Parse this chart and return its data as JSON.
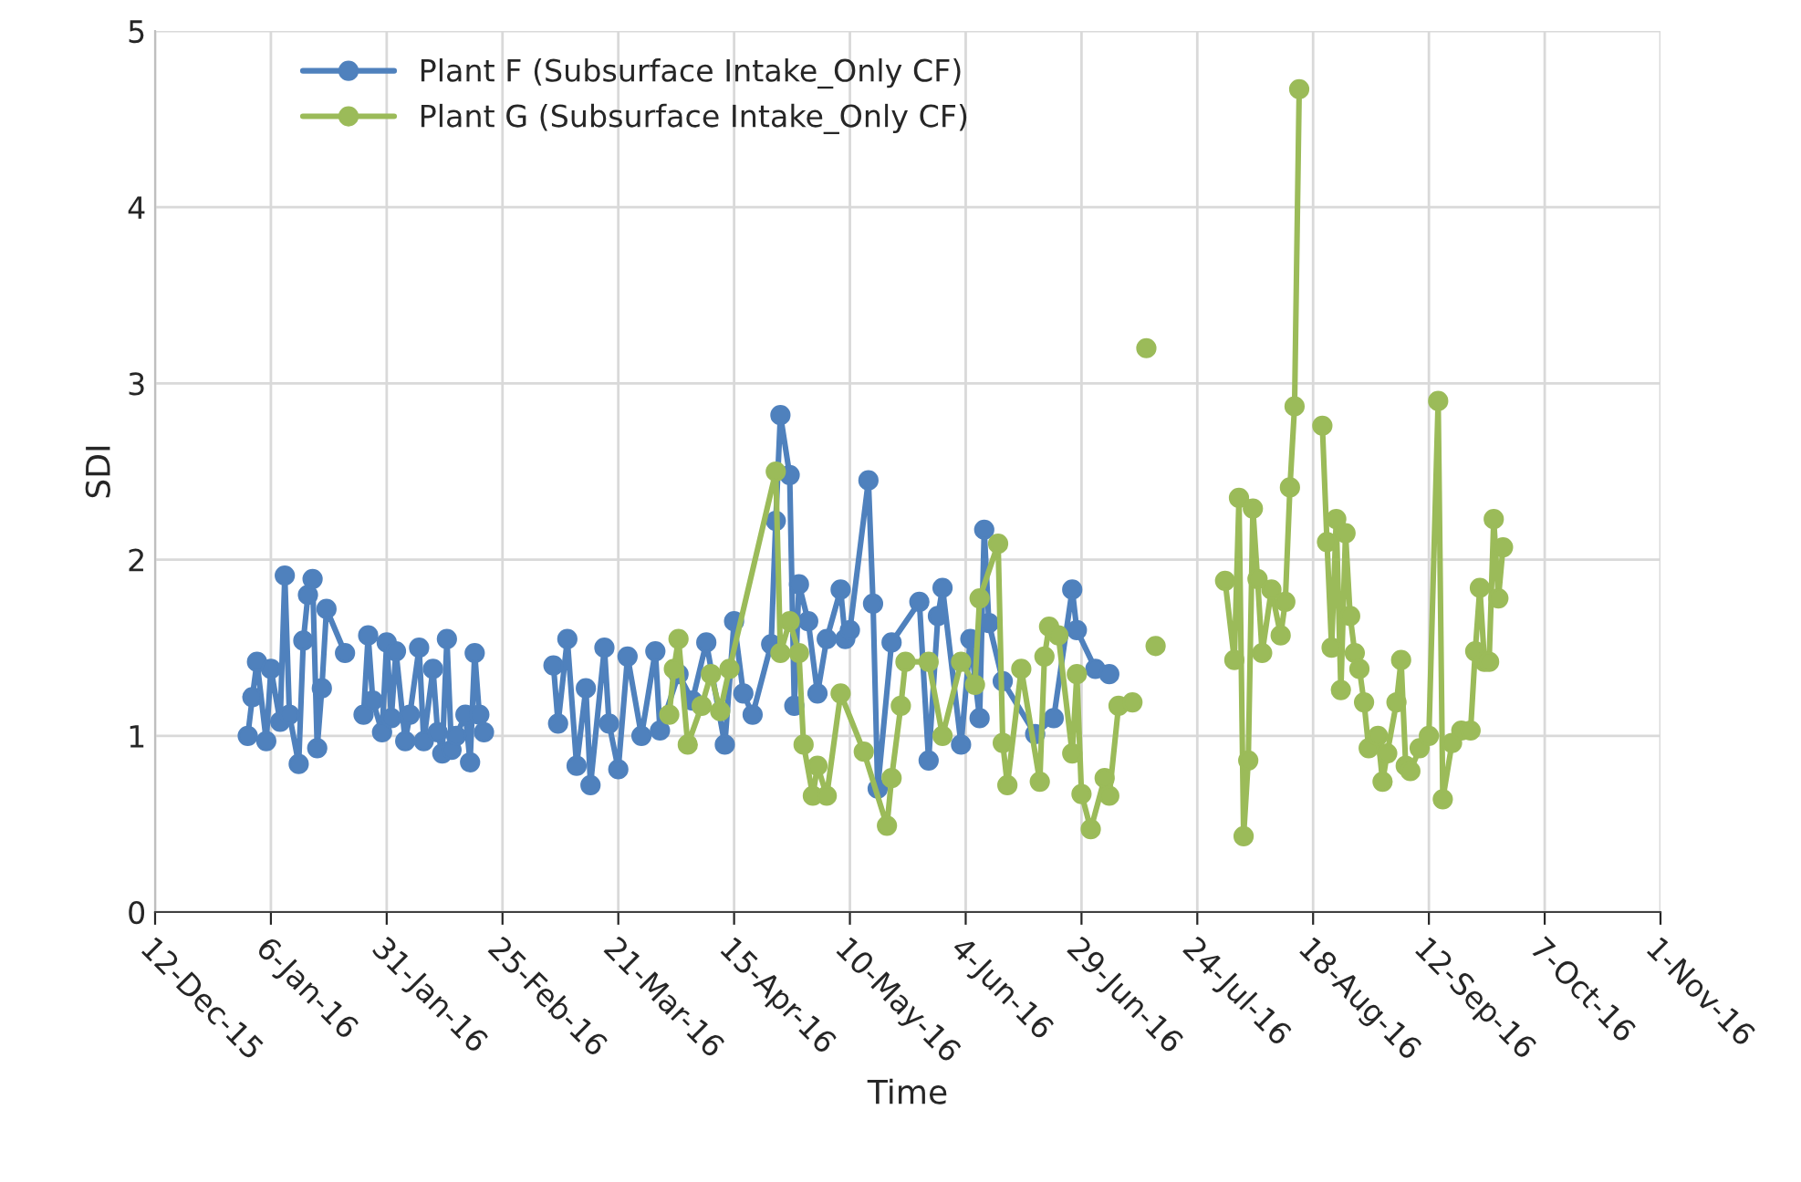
{
  "chart_data": {
    "type": "line",
    "xlabel": "Time",
    "ylabel": "SDI",
    "xlim": [
      "2015-12-12",
      "2016-11-01"
    ],
    "ylim": [
      0,
      5
    ],
    "yticks": [
      0,
      1,
      2,
      3,
      4,
      5
    ],
    "xticks": [
      {
        "value": "2015-12-12",
        "label": "12-Dec-15"
      },
      {
        "value": "2016-01-06",
        "label": "6-Jan-16"
      },
      {
        "value": "2016-01-31",
        "label": "31-Jan-16"
      },
      {
        "value": "2016-02-25",
        "label": "25-Feb-16"
      },
      {
        "value": "2016-03-21",
        "label": "21-Mar-16"
      },
      {
        "value": "2016-04-15",
        "label": "15-Apr-16"
      },
      {
        "value": "2016-05-10",
        "label": "10-May-16"
      },
      {
        "value": "2016-06-04",
        "label": "4-Jun-16"
      },
      {
        "value": "2016-06-29",
        "label": "29-Jun-16"
      },
      {
        "value": "2016-07-24",
        "label": "24-Jul-16"
      },
      {
        "value": "2016-08-18",
        "label": "18-Aug-16"
      },
      {
        "value": "2016-09-12",
        "label": "12-Sep-16"
      },
      {
        "value": "2016-10-07",
        "label": "7-Oct-16"
      },
      {
        "value": "2016-11-01",
        "label": "1-Nov-16"
      }
    ],
    "grid": true,
    "legend": "top left",
    "marker": "circle",
    "line_style": "solid",
    "series": [
      {
        "name": "Plant F (Subsurface Intake_Only CF)",
        "color": "#4f81bd",
        "x": [
          "2016-01-01",
          "2016-01-02",
          "2016-01-03",
          "2016-01-05",
          "2016-01-06",
          "2016-01-08",
          "2016-01-09",
          "2016-01-10",
          "2016-01-12",
          "2016-01-13",
          "2016-01-14",
          "2016-01-15",
          "2016-01-16",
          "2016-01-17",
          "2016-01-18",
          "2016-01-22",
          "2016-01-24",
          "2016-01-26",
          "2016-01-27",
          "2016-01-28",
          "2016-01-30",
          "2016-01-31",
          "2016-02-01",
          "2016-02-02",
          "2016-02-04",
          "2016-02-05",
          "2016-02-07",
          "2016-02-08",
          "2016-02-10",
          "2016-02-11",
          "2016-02-12",
          "2016-02-13",
          "2016-02-14",
          "2016-02-15",
          "2016-02-17",
          "2016-02-18",
          "2016-02-19",
          "2016-02-20",
          "2016-02-21",
          "2016-03-01",
          "2016-03-07",
          "2016-03-08",
          "2016-03-10",
          "2016-03-12",
          "2016-03-14",
          "2016-03-15",
          "2016-03-18",
          "2016-03-19",
          "2016-03-21",
          "2016-03-23",
          "2016-03-26",
          "2016-03-29",
          "2016-03-30",
          "2016-04-03",
          "2016-04-06",
          "2016-04-09",
          "2016-04-13",
          "2016-04-15",
          "2016-04-17",
          "2016-04-19",
          "2016-04-23",
          "2016-04-24",
          "2016-04-25",
          "2016-04-27",
          "2016-04-28",
          "2016-04-29",
          "2016-05-01",
          "2016-05-03",
          "2016-05-05",
          "2016-05-08",
          "2016-05-09",
          "2016-05-10",
          "2016-05-14",
          "2016-05-15",
          "2016-05-16",
          "2016-05-19",
          "2016-05-25",
          "2016-05-27",
          "2016-05-29",
          "2016-05-30",
          "2016-06-03",
          "2016-06-05",
          "2016-06-07",
          "2016-06-08",
          "2016-06-09",
          "2016-06-12",
          "2016-06-19",
          "2016-06-23",
          "2016-06-27",
          "2016-06-28",
          "2016-07-02",
          "2016-07-05"
        ],
        "values": [
          1.0,
          1.22,
          1.42,
          0.97,
          1.38,
          1.08,
          1.91,
          1.12,
          0.84,
          1.54,
          1.8,
          1.89,
          0.93,
          1.27,
          1.72,
          1.47,
          null,
          1.12,
          1.57,
          1.2,
          1.02,
          1.53,
          1.1,
          1.48,
          0.97,
          1.12,
          1.5,
          0.97,
          1.38,
          1.02,
          0.9,
          1.55,
          0.92,
          1.0,
          1.12,
          0.85,
          1.47,
          1.12,
          1.02,
          null,
          1.4,
          1.07,
          1.55,
          0.83,
          1.27,
          0.72,
          1.5,
          1.07,
          0.81,
          1.45,
          1.0,
          1.48,
          1.03,
          1.35,
          1.2,
          1.53,
          0.95,
          1.65,
          1.24,
          1.12,
          1.52,
          2.22,
          2.82,
          2.48,
          1.17,
          1.86,
          1.65,
          1.24,
          1.55,
          1.83,
          1.55,
          1.6,
          2.45,
          1.75,
          0.7,
          1.53,
          1.76,
          0.86,
          1.68,
          1.84,
          0.95,
          1.55,
          1.1,
          2.17,
          1.64,
          1.31,
          1.01,
          1.1,
          1.83,
          1.6,
          1.38,
          1.35
        ]
      },
      {
        "name": "Plant G (Subsurface Intake_Only CF)",
        "color": "#9bbb59",
        "x": [
          "2016-04-01",
          "2016-04-02",
          "2016-04-03",
          "2016-04-05",
          "2016-04-08",
          "2016-04-10",
          "2016-04-12",
          "2016-04-14",
          "2016-04-24",
          "2016-04-25",
          "2016-04-27",
          "2016-04-29",
          "2016-04-30",
          "2016-05-02",
          "2016-05-03",
          "2016-05-05",
          "2016-05-08",
          "2016-05-13",
          "2016-05-18",
          "2016-05-19",
          "2016-05-21",
          "2016-05-22",
          "2016-05-27",
          "2016-05-30",
          "2016-06-03",
          "2016-06-06",
          "2016-06-07",
          "2016-06-11",
          "2016-06-12",
          "2016-06-13",
          "2016-06-16",
          "2016-06-20",
          "2016-06-21",
          "2016-06-22",
          "2016-06-24",
          "2016-06-27",
          "2016-06-28",
          "2016-06-29",
          "2016-07-01",
          "2016-07-04",
          "2016-07-05",
          "2016-07-07",
          "2016-07-10",
          "2016-07-12",
          "2016-07-13",
          "2016-07-14",
          "2016-07-15",
          "2016-07-20",
          "2016-07-30",
          "2016-08-01",
          "2016-08-02",
          "2016-08-03",
          "2016-08-04",
          "2016-08-05",
          "2016-08-06",
          "2016-08-07",
          "2016-08-09",
          "2016-08-11",
          "2016-08-12",
          "2016-08-13",
          "2016-08-14",
          "2016-08-15",
          "2016-08-17",
          "2016-08-20",
          "2016-08-21",
          "2016-08-22",
          "2016-08-23",
          "2016-08-24",
          "2016-08-25",
          "2016-08-26",
          "2016-08-27",
          "2016-08-28",
          "2016-08-29",
          "2016-08-30",
          "2016-09-01",
          "2016-09-02",
          "2016-09-03",
          "2016-09-05",
          "2016-09-06",
          "2016-09-07",
          "2016-09-08",
          "2016-09-10",
          "2016-09-12",
          "2016-09-14",
          "2016-09-15",
          "2016-09-17",
          "2016-09-19",
          "2016-09-21",
          "2016-09-22",
          "2016-09-23",
          "2016-09-24",
          "2016-09-25",
          "2016-09-26",
          "2016-09-27",
          "2016-09-28"
        ],
        "values": [
          1.12,
          1.38,
          1.55,
          0.95,
          1.17,
          1.35,
          1.14,
          1.38,
          2.5,
          1.47,
          1.65,
          1.47,
          0.95,
          0.66,
          0.83,
          0.66,
          1.24,
          0.91,
          0.49,
          0.76,
          1.17,
          1.42,
          1.42,
          1.0,
          1.42,
          1.29,
          1.78,
          2.09,
          0.96,
          0.72,
          1.38,
          0.74,
          1.45,
          1.62,
          1.57,
          0.9,
          1.35,
          0.67,
          0.47,
          0.76,
          0.66,
          1.17,
          1.19,
          null,
          3.2,
          null,
          1.51,
          null,
          1.88,
          1.43,
          2.35,
          0.43,
          0.86,
          2.29,
          1.89,
          1.47,
          1.83,
          1.57,
          1.76,
          2.41,
          2.87,
          4.67,
          null,
          2.76,
          2.1,
          1.5,
          2.23,
          1.26,
          2.15,
          1.68,
          1.47,
          1.38,
          1.19,
          0.93,
          1.0,
          0.74,
          0.9,
          1.19,
          1.43,
          0.83,
          0.8,
          0.93,
          1.0,
          2.9,
          0.64,
          0.96,
          1.03,
          1.03,
          1.48,
          1.84,
          1.42,
          1.42,
          2.23,
          1.78,
          2.07
        ]
      }
    ]
  }
}
